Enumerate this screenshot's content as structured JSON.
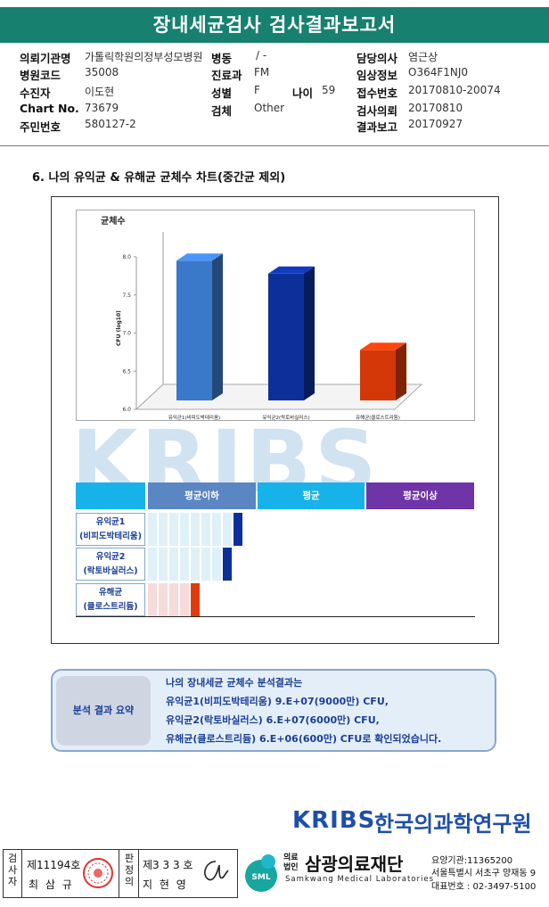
{
  "header": {
    "title": "장내세균검사 검사결과보고서"
  },
  "patient": {
    "institution_label": "의뢰기관명",
    "institution_value": "가톨릭학원의정부성모병원",
    "ward_label": "병동",
    "ward_value": "/ -",
    "doctor_label": "담당의사",
    "doctor_value": "염근상",
    "hospital_code_label": "병원코드",
    "hospital_code_value": "35008",
    "dept_label": "진료과",
    "dept_value": "FM",
    "clinical_label": "임상정보",
    "clinical_value": "O364F1NJ0",
    "recipient_label": "수진자",
    "recipient_value": "이도현",
    "sex_label": "성별",
    "sex_value": "F",
    "age_label": "나이",
    "age_value": "59",
    "receipt_label": "접수번호",
    "receipt_value": "20170810-20074",
    "chart_label": "Chart No.",
    "chart_value": "73679",
    "specimen_label": "검체",
    "specimen_value": "Other",
    "request_label": "검사의뢰",
    "request_value": "20170810",
    "rrn_label": "주민번호",
    "rrn_value": "580127-2",
    "report_label": "결과보고",
    "report_value": "20170927"
  },
  "section": {
    "title": "6. 나의 유익균 & 유해균 균체수 차트(중간균 제외)"
  },
  "chart_data": {
    "type": "bar",
    "title": "균체수",
    "ylabel": "CFU (log10)",
    "xlabel": "",
    "ylim": [
      6.0,
      8.0
    ],
    "yticks": [
      "6.0",
      "6.5",
      "7.0",
      "7.5",
      "8.0"
    ],
    "categories": [
      "유익균1(비피도박테리움)",
      "유익균2(락토바실러스)",
      "유해균(클로스트리듐)"
    ],
    "values": [
      7.95,
      7.78,
      6.78
    ],
    "colors": [
      "#3a78c9",
      "#0d2f9a",
      "#d43808"
    ],
    "grid": false
  },
  "watermark": {
    "text": "KRIBS"
  },
  "comparison": {
    "headers": [
      "평균이하",
      "평균",
      "평균이상"
    ],
    "header_colors": [
      "#5a86c4",
      "#17b2ea",
      "#6e34a8"
    ],
    "rows": [
      {
        "line1": "유익균1",
        "line2": "(비피도박테리움)",
        "cells": 8,
        "marker_color": "#0d2f9a",
        "cell_color": "#dff0f8"
      },
      {
        "line1": "유익균2",
        "line2": "(락토바실러스)",
        "cells": 7,
        "marker_color": "#0d2f9a",
        "cell_color": "#dff0f8"
      },
      {
        "line1": "유해균",
        "line2": "(클로스트리듐)",
        "cells": 4,
        "marker_color": "#e23a0a",
        "cell_color": "#f7dada"
      }
    ]
  },
  "summary": {
    "label": "분석 결과 요약",
    "line1": "나의 장내세균 균체수 분석결과는",
    "line2": "유익균1(비피도박테리움) 9.E+07(9000만) CFU,",
    "line3": "유익균2(락토바실러스) 6.E+07(6000만) CFU,",
    "line4": "유해균(클로스트리듐) 6.E+06(600만) CFU로 확인되었습니다."
  },
  "logo": {
    "abbr": "KRIBS",
    "name": "한국의과학연구원"
  },
  "footer": {
    "examiner_label": "검사자",
    "examiner_no": "제11194호",
    "examiner_name": "최 삼 규",
    "reviewer_label": "판정의",
    "reviewer_no": "제3 3 3 호",
    "reviewer_name": "지 현 영",
    "signature": "Chi",
    "org_prefix": "의료법인",
    "org_name": "삼광의료재단",
    "org_eng": "Samkwang Medical Laboratories",
    "sml": "SML",
    "org_code": "요양기관:11365200",
    "org_address": "서울특별시 서초구 양재동 9",
    "org_phone": "대표번호 : 02-3497-5100"
  }
}
